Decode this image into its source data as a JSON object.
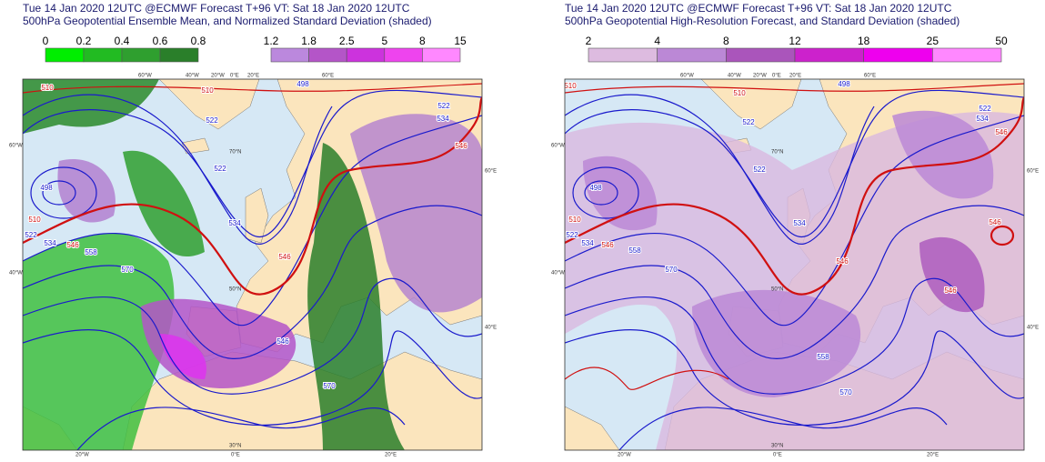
{
  "panels": [
    {
      "title": [
        "Tue 14 Jan 2020 12UTC @ECMWF Forecast T+96 VT: Sat 18 Jan 2020 12UTC",
        "500hPa Geopotential Ensemble Mean, and Normalized Standard Deviation (shaded)"
      ],
      "colorbars": [
        {
          "labels": [
            "0",
            "0.2",
            "0.4",
            "0.6",
            "0.8"
          ],
          "colors": [
            "#00ee00",
            "#22bb22",
            "#2f9f2f",
            "#2a7f2a"
          ]
        },
        {
          "labels": [
            "1.2",
            "1.8",
            "2.5",
            "5",
            "8",
            "15"
          ],
          "colors": [
            "#bb88dd",
            "#b455c8",
            "#cc33dd",
            "#ee44ee",
            "#ff88ff"
          ]
        }
      ],
      "contour_labels": [
        "510",
        "498",
        "510",
        "522",
        "534",
        "546",
        "558",
        "570",
        "510",
        "522",
        "522",
        "534",
        "546",
        "498",
        "522",
        "534",
        "546",
        "546",
        "570"
      ],
      "geo_labels": [
        "60°W",
        "40°W",
        "20°W",
        "0°E",
        "20°E",
        "60°E",
        "60°W",
        "40°W",
        "60°E",
        "40°E",
        "70°N",
        "50°N",
        "30°N",
        "20°W",
        "0°E",
        "20°E"
      ]
    },
    {
      "title": [
        "Tue 14 Jan 2020 12UTC @ECMWF Forecast T+96 VT: Sat 18 Jan 2020 12UTC",
        "500hPa Geopotential High-Resolution Forecast, and Standard Deviation (shaded)"
      ],
      "colorbars": [
        {
          "labels": [
            "2",
            "4",
            "8",
            "12",
            "18",
            "25",
            "50"
          ],
          "colors": [
            "#ddbbe0",
            "#bb88d6",
            "#aa55bb",
            "#cc22cc",
            "#ee00ee",
            "#ff88ff"
          ]
        }
      ],
      "contour_labels": [
        "510",
        "498",
        "510",
        "522",
        "534",
        "546",
        "558",
        "570",
        "510",
        "522",
        "522",
        "534",
        "546",
        "498",
        "522",
        "534",
        "546",
        "546",
        "546",
        "558",
        "570"
      ],
      "geo_labels": [
        "60°W",
        "40°W",
        "20°W",
        "0°E",
        "20°E",
        "60°E",
        "60°W",
        "40°W",
        "60°E",
        "40°E",
        "70°N",
        "50°N",
        "30°N",
        "20°W",
        "0°E",
        "20°E"
      ]
    }
  ]
}
